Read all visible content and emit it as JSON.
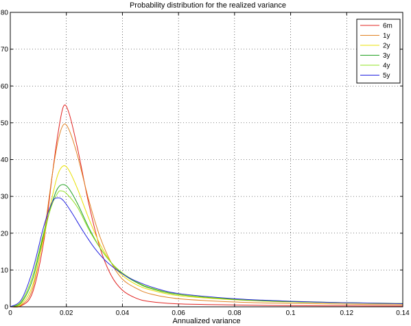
{
  "chart_data": {
    "type": "line",
    "title": "Probability distribution for the realized variance",
    "xlabel": "Annualized variance",
    "ylabel": "",
    "xlim": [
      0,
      0.14
    ],
    "ylim": [
      0,
      80
    ],
    "xticks": [
      "0",
      "0.02",
      "0.04",
      "0.06",
      "0.08",
      "0.1",
      "0.12",
      "0.14"
    ],
    "yticks": [
      "0",
      "10",
      "20",
      "30",
      "40",
      "50",
      "60",
      "70",
      "80"
    ],
    "grid": true,
    "legend_position": "top-right",
    "series": [
      {
        "name": "6m",
        "color": "#e0201e",
        "points": [
          [
            0,
            0
          ],
          [
            0.004,
            0.3
          ],
          [
            0.008,
            4
          ],
          [
            0.012,
            18
          ],
          [
            0.015,
            36
          ],
          [
            0.017,
            47
          ],
          [
            0.019,
            54.5
          ],
          [
            0.021,
            52.5
          ],
          [
            0.024,
            43
          ],
          [
            0.028,
            28
          ],
          [
            0.032,
            16
          ],
          [
            0.036,
            8.5
          ],
          [
            0.04,
            4.5
          ],
          [
            0.045,
            2.3
          ],
          [
            0.05,
            1.4
          ],
          [
            0.06,
            0.8
          ],
          [
            0.08,
            0.5
          ],
          [
            0.1,
            0.3
          ],
          [
            0.12,
            0.25
          ],
          [
            0.14,
            0.2
          ]
        ]
      },
      {
        "name": "1y",
        "color": "#e08020",
        "points": [
          [
            0,
            0
          ],
          [
            0.004,
            0.5
          ],
          [
            0.008,
            5
          ],
          [
            0.012,
            20
          ],
          [
            0.015,
            36
          ],
          [
            0.017,
            45
          ],
          [
            0.019,
            49.5
          ],
          [
            0.021,
            48
          ],
          [
            0.024,
            41
          ],
          [
            0.028,
            29
          ],
          [
            0.032,
            19
          ],
          [
            0.036,
            12
          ],
          [
            0.04,
            7.5
          ],
          [
            0.045,
            5
          ],
          [
            0.05,
            3.5
          ],
          [
            0.06,
            2.2
          ],
          [
            0.08,
            1.3
          ],
          [
            0.1,
            0.9
          ],
          [
            0.12,
            0.7
          ],
          [
            0.14,
            0.55
          ]
        ]
      },
      {
        "name": "2y",
        "color": "#e8e000",
        "points": [
          [
            0,
            0
          ],
          [
            0.004,
            0.8
          ],
          [
            0.008,
            6
          ],
          [
            0.012,
            19
          ],
          [
            0.015,
            30
          ],
          [
            0.017,
            36
          ],
          [
            0.019,
            38.3
          ],
          [
            0.021,
            37
          ],
          [
            0.024,
            32
          ],
          [
            0.028,
            24
          ],
          [
            0.032,
            17
          ],
          [
            0.036,
            12
          ],
          [
            0.04,
            8.5
          ],
          [
            0.045,
            6
          ],
          [
            0.05,
            4.6
          ],
          [
            0.06,
            3
          ],
          [
            0.08,
            1.9
          ],
          [
            0.1,
            1.3
          ],
          [
            0.12,
            1
          ],
          [
            0.14,
            0.8
          ]
        ]
      },
      {
        "name": "3y",
        "color": "#20a020",
        "points": [
          [
            0,
            0
          ],
          [
            0.004,
            1.2
          ],
          [
            0.008,
            7.5
          ],
          [
            0.012,
            20
          ],
          [
            0.015,
            28.5
          ],
          [
            0.017,
            32.3
          ],
          [
            0.019,
            33.2
          ],
          [
            0.021,
            32
          ],
          [
            0.024,
            28
          ],
          [
            0.028,
            21.5
          ],
          [
            0.032,
            16
          ],
          [
            0.036,
            12
          ],
          [
            0.04,
            9
          ],
          [
            0.045,
            6.6
          ],
          [
            0.05,
            5
          ],
          [
            0.06,
            3.3
          ],
          [
            0.08,
            2
          ],
          [
            0.1,
            1.4
          ],
          [
            0.12,
            1.1
          ],
          [
            0.14,
            0.9
          ]
        ]
      },
      {
        "name": "4y",
        "color": "#90e020",
        "points": [
          [
            0,
            0
          ],
          [
            0.004,
            1.5
          ],
          [
            0.008,
            8.5
          ],
          [
            0.012,
            20.5
          ],
          [
            0.015,
            28
          ],
          [
            0.017,
            31
          ],
          [
            0.018,
            31.5
          ],
          [
            0.02,
            30.8
          ],
          [
            0.024,
            27
          ],
          [
            0.028,
            21
          ],
          [
            0.032,
            16
          ],
          [
            0.036,
            12
          ],
          [
            0.04,
            9.2
          ],
          [
            0.045,
            6.8
          ],
          [
            0.05,
            5.2
          ],
          [
            0.06,
            3.4
          ],
          [
            0.08,
            2.1
          ],
          [
            0.1,
            1.5
          ],
          [
            0.12,
            1.1
          ],
          [
            0.14,
            0.9
          ]
        ]
      },
      {
        "name": "5y",
        "color": "#2020e0",
        "points": [
          [
            0,
            0
          ],
          [
            0.004,
            2
          ],
          [
            0.008,
            10
          ],
          [
            0.012,
            22
          ],
          [
            0.015,
            28.5
          ],
          [
            0.017,
            29.6
          ],
          [
            0.019,
            28.8
          ],
          [
            0.022,
            25.5
          ],
          [
            0.026,
            20.5
          ],
          [
            0.03,
            16
          ],
          [
            0.034,
            12.5
          ],
          [
            0.038,
            10
          ],
          [
            0.042,
            8
          ],
          [
            0.047,
            6.3
          ],
          [
            0.052,
            5
          ],
          [
            0.06,
            3.6
          ],
          [
            0.08,
            2.2
          ],
          [
            0.1,
            1.5
          ],
          [
            0.12,
            1.1
          ],
          [
            0.14,
            0.85
          ]
        ]
      }
    ]
  }
}
